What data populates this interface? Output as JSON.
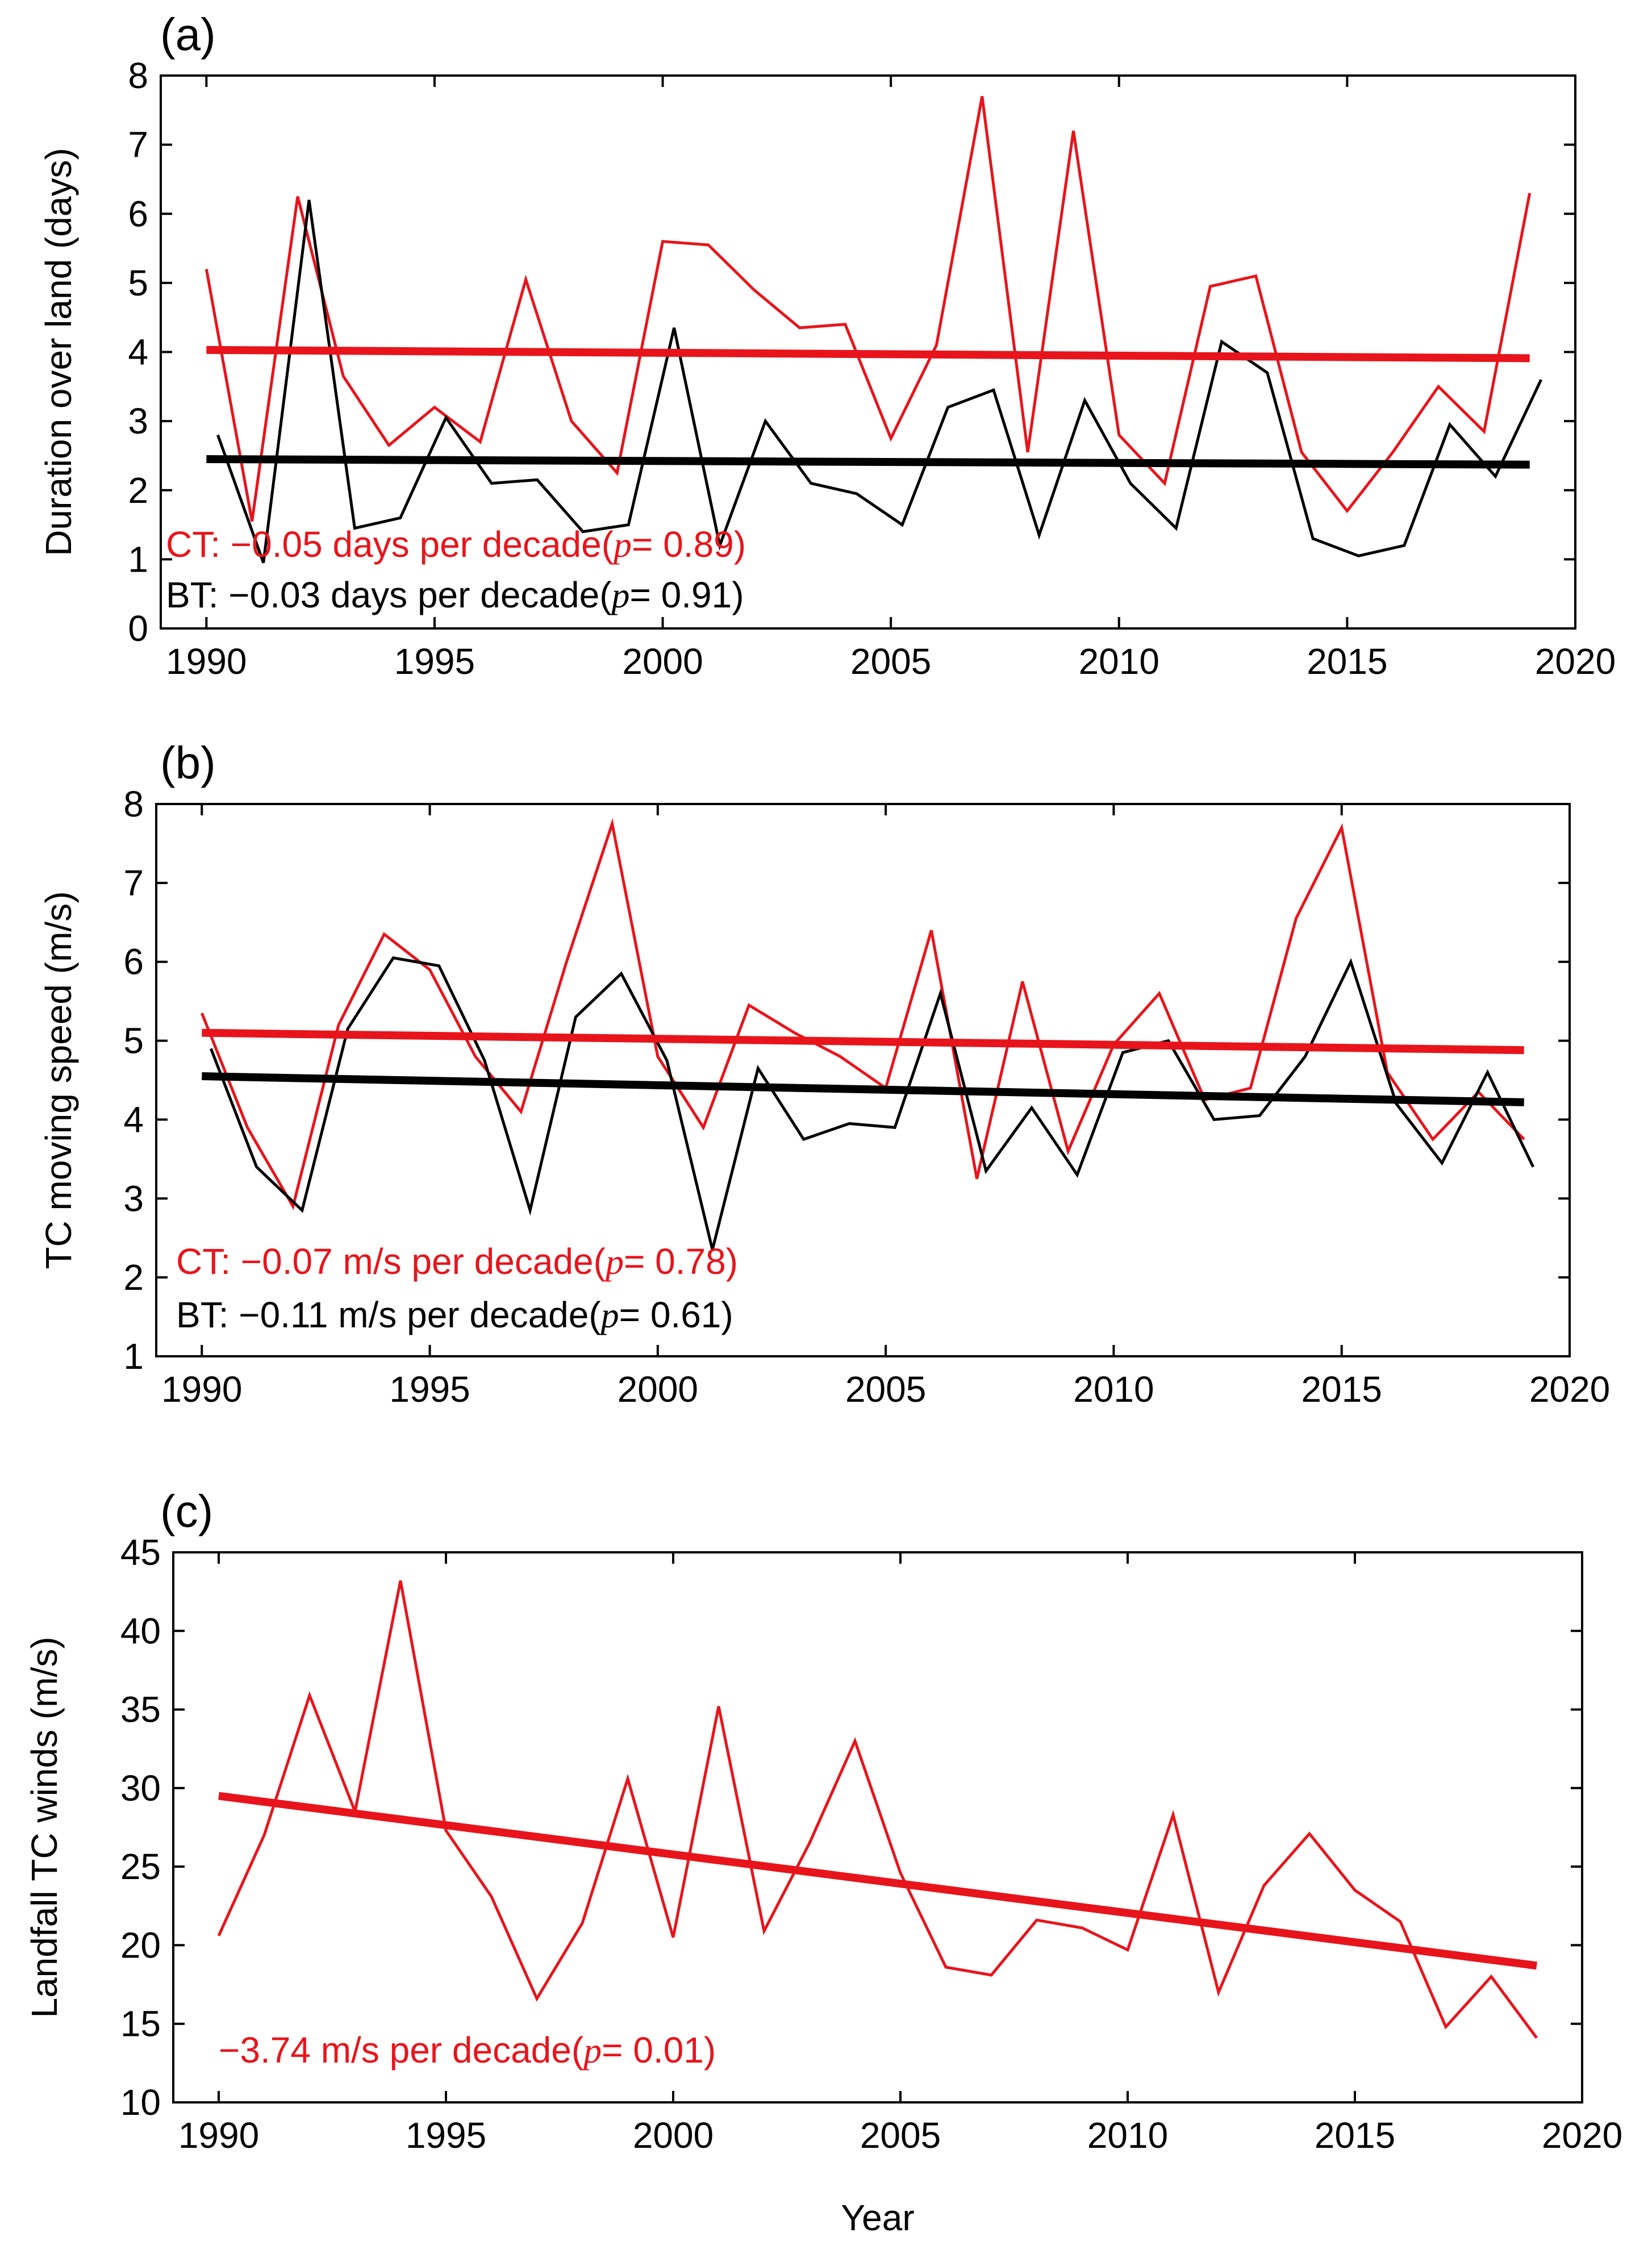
{
  "chart_data": [
    {
      "type": "line",
      "panel_label": "(a)",
      "title": "",
      "xlabel": "",
      "ylabel": "Duration over land (days)",
      "xlim": [
        1989,
        2020
      ],
      "ylim": [
        0,
        8
      ],
      "xticks": [
        1990,
        1995,
        2000,
        2005,
        2010,
        2015,
        2020
      ],
      "yticks": [
        0,
        1,
        2,
        3,
        4,
        5,
        6,
        7,
        8
      ],
      "x": [
        1990,
        1991,
        1992,
        1993,
        1994,
        1995,
        1996,
        1997,
        1998,
        1999,
        2000,
        2001,
        2002,
        2003,
        2004,
        2005,
        2006,
        2007,
        2008,
        2009,
        2010,
        2011,
        2012,
        2013,
        2014,
        2015,
        2016,
        2017,
        2018,
        2019
      ],
      "series": [
        {
          "name": "CT",
          "color": "#e8141b",
          "values": [
            5.2,
            1.55,
            6.25,
            3.65,
            2.65,
            3.2,
            2.7,
            5.05,
            3.0,
            2.25,
            5.6,
            5.55,
            4.9,
            4.35,
            4.4,
            2.75,
            4.1,
            7.7,
            2.55,
            7.2,
            2.8,
            2.1,
            4.95,
            5.1,
            2.55,
            1.7,
            2.55,
            3.5,
            2.85,
            6.3
          ]
        },
        {
          "name": "BT",
          "color": "#000000",
          "x_shift": 0.25,
          "values": [
            2.8,
            0.95,
            6.2,
            1.45,
            1.6,
            3.05,
            2.1,
            2.15,
            1.4,
            1.5,
            4.35,
            1.2,
            3.0,
            2.1,
            1.95,
            1.5,
            3.2,
            3.45,
            1.35,
            3.3,
            2.1,
            1.45,
            4.15,
            3.7,
            1.3,
            1.05,
            1.2,
            2.95,
            2.2,
            3.6
          ]
        }
      ],
      "trends": [
        {
          "name": "CT trend",
          "color": "#e8141b",
          "x": [
            1990,
            2019
          ],
          "y": [
            4.03,
            3.91
          ]
        },
        {
          "name": "BT trend",
          "color": "#000000",
          "x": [
            1990,
            2019
          ],
          "y": [
            2.45,
            2.37
          ]
        }
      ],
      "annotations": [
        {
          "color": "#e8141b",
          "pre": "CT: −0.05 days per decade(",
          "p": "p",
          "post": "= 0.89)"
        },
        {
          "color": "#000000",
          "pre": "BT: −0.03 days per decade(",
          "p": "p",
          "post": "= 0.91)"
        }
      ]
    },
    {
      "type": "line",
      "panel_label": "(b)",
      "title": "",
      "xlabel": "",
      "ylabel": "TC moving speed (m/s)",
      "xlim": [
        1989,
        2020
      ],
      "ylim": [
        1,
        8
      ],
      "xticks": [
        1990,
        1995,
        2000,
        2005,
        2010,
        2015,
        2020
      ],
      "yticks": [
        1,
        2,
        3,
        4,
        5,
        6,
        7,
        8
      ],
      "x": [
        1990,
        1991,
        1992,
        1993,
        1994,
        1995,
        1996,
        1997,
        1998,
        1999,
        2000,
        2001,
        2002,
        2003,
        2004,
        2005,
        2006,
        2007,
        2008,
        2009,
        2010,
        2011,
        2012,
        2013,
        2014,
        2015,
        2016,
        2017,
        2018,
        2019
      ],
      "series": [
        {
          "name": "CT",
          "color": "#e8141b",
          "values": [
            5.35,
            3.9,
            2.9,
            5.2,
            6.35,
            5.9,
            4.8,
            4.1,
            6.0,
            7.75,
            4.8,
            3.9,
            5.45,
            5.1,
            4.8,
            4.4,
            6.4,
            3.25,
            5.75,
            3.6,
            4.95,
            5.6,
            4.25,
            4.4,
            6.55,
            7.7,
            4.6,
            3.75,
            4.35,
            3.75
          ]
        },
        {
          "name": "BT",
          "color": "#000000",
          "x_shift": 0.2,
          "values": [
            4.9,
            3.4,
            2.85,
            5.15,
            6.05,
            5.95,
            4.75,
            2.85,
            5.3,
            5.85,
            4.75,
            2.35,
            4.65,
            3.75,
            3.95,
            3.9,
            5.6,
            3.35,
            4.15,
            3.3,
            4.85,
            5.0,
            4.0,
            4.05,
            4.8,
            6.0,
            4.2,
            3.45,
            4.6,
            3.4
          ]
        }
      ],
      "trends": [
        {
          "name": "CT trend",
          "color": "#e8141b",
          "x": [
            1990,
            2019
          ],
          "y": [
            5.1,
            4.88
          ]
        },
        {
          "name": "BT trend",
          "color": "#000000",
          "x": [
            1990,
            2019
          ],
          "y": [
            4.55,
            4.22
          ]
        }
      ],
      "annotations": [
        {
          "color": "#e8141b",
          "pre": "CT: −0.07 m/s per decade(",
          "p": "p",
          "post": "= 0.78)"
        },
        {
          "color": "#000000",
          "pre": "BT: −0.11 m/s per decade(",
          "p": "p",
          "post": "= 0.61)"
        }
      ]
    },
    {
      "type": "line",
      "panel_label": "(c)",
      "title": "",
      "xlabel": "Year",
      "ylabel": "Landfall TC winds (m/s)",
      "xlim": [
        1989,
        2020
      ],
      "ylim": [
        10,
        45
      ],
      "xticks": [
        1990,
        1995,
        2000,
        2005,
        2010,
        2015,
        2020
      ],
      "yticks": [
        10,
        15,
        20,
        25,
        30,
        35,
        40,
        45
      ],
      "x": [
        1990,
        1991,
        1992,
        1993,
        1994,
        1995,
        1996,
        1997,
        1998,
        1999,
        2000,
        2001,
        2002,
        2003,
        2004,
        2005,
        2006,
        2007,
        2008,
        2009,
        2010,
        2011,
        2012,
        2013,
        2014,
        2015,
        2016,
        2017,
        2018,
        2019
      ],
      "series": [
        {
          "name": "Landfall TC winds",
          "color": "#e8141b",
          "values": [
            20.6,
            27.0,
            35.9,
            28.5,
            43.2,
            27.3,
            23.1,
            16.6,
            21.4,
            30.6,
            20.5,
            35.2,
            20.9,
            26.5,
            33.0,
            24.6,
            18.6,
            18.1,
            21.6,
            21.1,
            19.7,
            28.3,
            17.0,
            23.8,
            27.1,
            23.5,
            21.5,
            14.8,
            18.0,
            14.1
          ]
        }
      ],
      "trends": [
        {
          "name": "trend",
          "color": "#e8141b",
          "x": [
            1990,
            2019
          ],
          "y": [
            29.5,
            18.7
          ]
        }
      ],
      "annotations": [
        {
          "color": "#e8141b",
          "pre": "−3.74 m/s per decade(",
          "p": "p",
          "post": "= 0.01)"
        }
      ]
    }
  ]
}
